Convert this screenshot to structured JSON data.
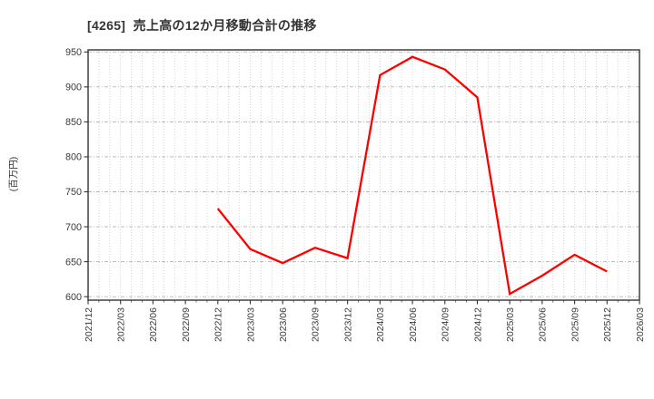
{
  "header": {
    "title": "[4265]  売上高の12か月移動合計の推移",
    "title_color": "#333333"
  },
  "chart_data": {
    "type": "line",
    "title": "[4265]  売上高の12か月移動合計の推移",
    "xlabel": "",
    "ylabel": "(百万円)",
    "x_ticks": [
      "2021/12",
      "2022/03",
      "2022/06",
      "2022/09",
      "2022/12",
      "2023/03",
      "2023/06",
      "2023/09",
      "2023/12",
      "2024/03",
      "2024/06",
      "2024/09",
      "2024/12",
      "2025/03",
      "2025/06",
      "2025/09",
      "2025/12",
      "2026/03"
    ],
    "y_ticks": [
      600,
      650,
      700,
      750,
      800,
      850,
      900,
      950
    ],
    "ylim": [
      595,
      953
    ],
    "grid": {
      "horizontal": "major, dash-dot gray",
      "vertical": "monthly minor, dotted gray",
      "grid_color": "#b3b3b3",
      "minor_grid_color": "#c9c9c9",
      "frame_color": "#333333"
    },
    "legend": "none",
    "series": [
      {
        "name": "売上高の12か月移動合計",
        "color": "#ff0000",
        "points": [
          {
            "x": "2022/12",
            "y": 726
          },
          {
            "x": "2023/03",
            "y": 668
          },
          {
            "x": "2023/06",
            "y": 648
          },
          {
            "x": "2023/09",
            "y": 670
          },
          {
            "x": "2023/12",
            "y": 655
          },
          {
            "x": "2024/03",
            "y": 917
          },
          {
            "x": "2024/06",
            "y": 943
          },
          {
            "x": "2024/09",
            "y": 925
          },
          {
            "x": "2024/12",
            "y": 885
          },
          {
            "x": "2025/03",
            "y": 604
          },
          {
            "x": "2025/06",
            "y": 630
          },
          {
            "x": "2025/09",
            "y": 660
          },
          {
            "x": "2025/12",
            "y": 636
          }
        ]
      }
    ]
  },
  "labels": {
    "tick_label_color": "#3a3a3a"
  }
}
